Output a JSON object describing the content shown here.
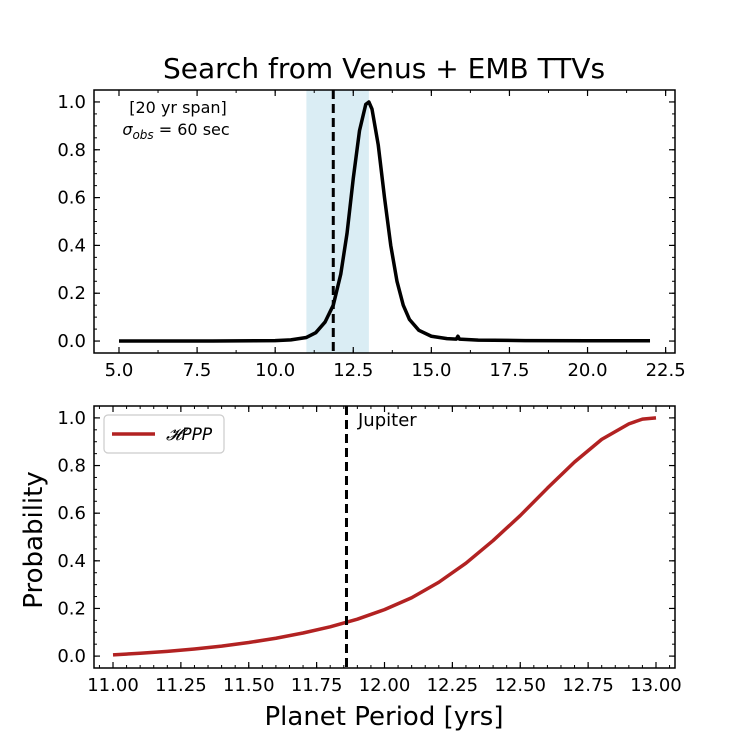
{
  "figure": {
    "title": "Search from Venus + EMB TTVs",
    "colors": {
      "curve_top": "#000000",
      "curve_bottom": "#b22222",
      "shade": "#add8e6",
      "vline": "#000000"
    }
  },
  "chart_data": [
    {
      "type": "line",
      "title": "Search from Venus + EMB TTVs",
      "xlabel": "",
      "ylabel": "",
      "xlim": [
        4.2,
        22.8
      ],
      "ylim": [
        -0.05,
        1.05
      ],
      "xticks": [
        "5.0",
        "7.5",
        "10.0",
        "12.5",
        "15.0",
        "17.5",
        "20.0",
        "22.5"
      ],
      "yticks": [
        "0.0",
        "0.2",
        "0.4",
        "0.6",
        "0.8",
        "1.0"
      ],
      "annotations": [
        "[20 yr span]",
        "σobs = 60 sec"
      ],
      "shaded_region": [
        11.0,
        13.0
      ],
      "vline_x": 11.86,
      "series": [
        {
          "x": [
            5,
            8,
            10,
            10.5,
            11,
            11.3,
            11.6,
            11.86,
            12.1,
            12.3,
            12.5,
            12.7,
            12.9,
            13.0,
            13.1,
            13.3,
            13.5,
            13.7,
            13.9,
            14.1,
            14.3,
            14.6,
            15.0,
            15.5,
            15.8,
            15.85,
            15.9,
            16.5,
            18,
            20,
            22
          ],
          "y": [
            0,
            0,
            0.002,
            0.005,
            0.015,
            0.035,
            0.08,
            0.15,
            0.28,
            0.45,
            0.68,
            0.88,
            0.99,
            1.0,
            0.97,
            0.82,
            0.6,
            0.4,
            0.25,
            0.15,
            0.09,
            0.045,
            0.02,
            0.01,
            0.008,
            0.02,
            0.008,
            0.004,
            0.002,
            0.001,
            0.001
          ]
        }
      ]
    },
    {
      "type": "line",
      "title": "",
      "xlabel": "Planet Period [yrs]",
      "ylabel": "Probability",
      "xlim": [
        10.93,
        13.07
      ],
      "ylim": [
        -0.05,
        1.05
      ],
      "xticks": [
        "11.00",
        "11.25",
        "11.50",
        "11.75",
        "12.00",
        "12.25",
        "12.50",
        "12.75",
        "13.00"
      ],
      "yticks": [
        "0.0",
        "0.2",
        "0.4",
        "0.6",
        "0.8",
        "1.0"
      ],
      "vline_x": 11.86,
      "vline_label": "Jupiter",
      "legend_position": "upper-left",
      "series": [
        {
          "name": "𝓗PPP",
          "x": [
            11.0,
            11.1,
            11.2,
            11.3,
            11.4,
            11.5,
            11.6,
            11.7,
            11.8,
            11.9,
            12.0,
            12.1,
            12.2,
            12.3,
            12.4,
            12.5,
            12.6,
            12.7,
            12.8,
            12.9,
            12.95,
            13.0
          ],
          "y": [
            0.005,
            0.012,
            0.02,
            0.03,
            0.042,
            0.057,
            0.075,
            0.097,
            0.123,
            0.155,
            0.195,
            0.245,
            0.31,
            0.39,
            0.485,
            0.59,
            0.705,
            0.815,
            0.91,
            0.975,
            0.995,
            1.0
          ]
        }
      ]
    }
  ]
}
